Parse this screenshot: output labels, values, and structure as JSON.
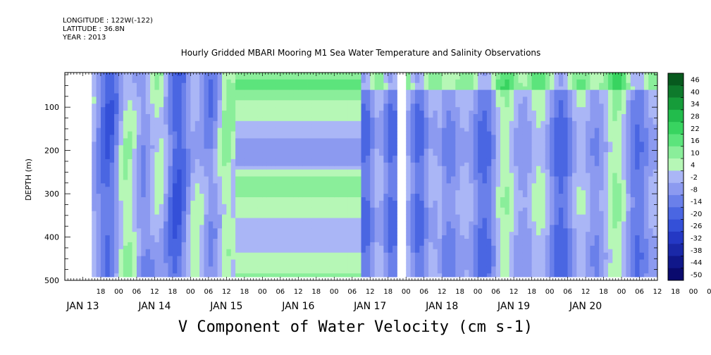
{
  "header": {
    "longitude": "LONGITUDE : 122W(-122)",
    "latitude": "LATITUDE : 36.8N",
    "year": "YEAR : 2013"
  },
  "chart_data": {
    "type": "heatmap",
    "title": "Hourly Gridded MBARI Mooring M1 Sea Water Temperature and Salinity Observations",
    "caption": "V Component of Water Velocity (cm s-1)",
    "ylabel": "DEPTH (m)",
    "xlabel": "",
    "x_range_hours_from_jan13_00": [
      6,
      204
    ],
    "y_range_m": [
      500,
      20
    ],
    "y_ticks": [
      100,
      200,
      300,
      400,
      500
    ],
    "x_hour_ticks": [
      "18",
      "00",
      "06",
      "12",
      "18",
      "00",
      "06",
      "12",
      "18",
      "00",
      "06",
      "12",
      "18",
      "00",
      "06",
      "12",
      "18",
      "00",
      "06",
      "12",
      "18",
      "00",
      "06",
      "12",
      "18",
      "00",
      "06",
      "12",
      "18",
      "00",
      "06",
      "12",
      "18",
      "00",
      "06",
      "12"
    ],
    "x_date_labels": [
      "JAN 13",
      "JAN 14",
      "JAN 15",
      "JAN 16",
      "JAN 17",
      "JAN 18",
      "JAN 19",
      "JAN 20"
    ],
    "colorbar": {
      "levels": [
        -50,
        -44,
        -38,
        -32,
        -26,
        -20,
        -14,
        -8,
        -2,
        4,
        10,
        16,
        22,
        28,
        34,
        40,
        46
      ],
      "tick_labels": [
        "46",
        "40",
        "34",
        "28",
        "22",
        "16",
        "10",
        "4",
        "-2",
        "-8",
        "-14",
        "-20",
        "-26",
        "-32",
        "-38",
        "-44",
        "-50"
      ]
    },
    "data_extent": {
      "start_hour": 15,
      "end_hour": 204,
      "depth_top_m": 20,
      "depth_bottom_m": 485
    },
    "gap_hour": 117.5,
    "colors": {
      "neg_strong": "#1c2ca8",
      "neg_mid": "#6b7be6",
      "neg_weak": "#a9b6f5",
      "pos_weak": "#a6f0a6",
      "pos_mid": "#50e070",
      "pos_strong": "#1a9a3a"
    }
  }
}
